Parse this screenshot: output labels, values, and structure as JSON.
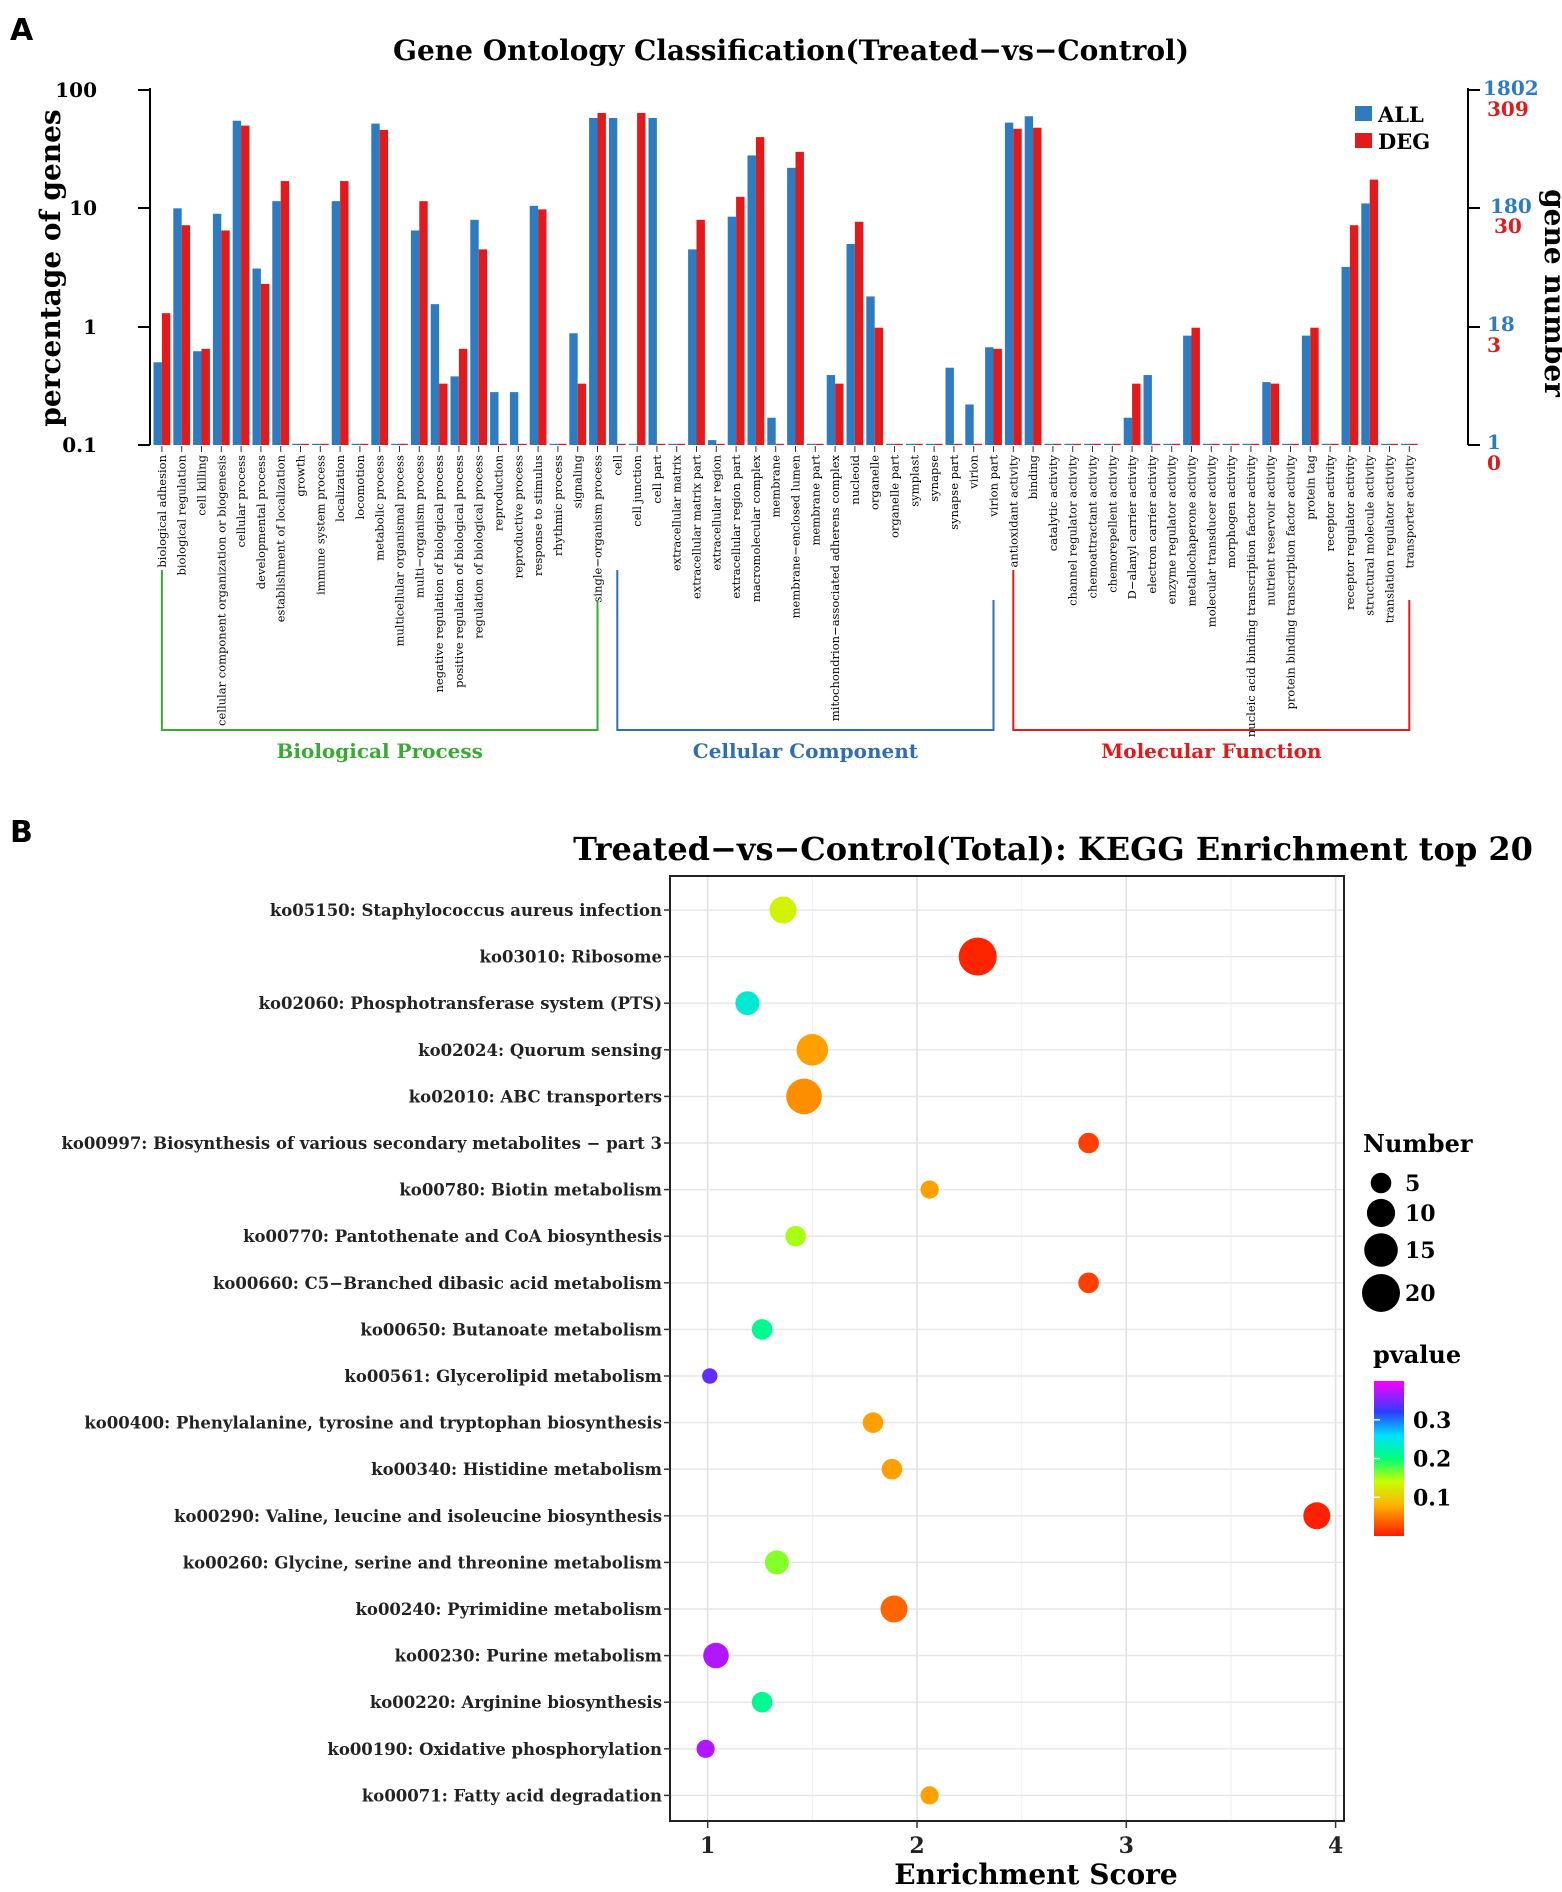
{
  "panels": {
    "a": "A",
    "b": "B"
  },
  "go_chart": {
    "ylabel_left": "percentage of genes",
    "ylabel_right": "gene number",
    "left_ticks": [
      "100",
      "10",
      "1",
      "0.1"
    ],
    "right_ticks_all": [
      "1802",
      "180",
      "18",
      "1"
    ],
    "right_ticks_deg": [
      "309",
      "30",
      "3",
      "0"
    ]
  },
  "kegg_chart": {
    "legend_number_title": "Number",
    "legend_pvalue_title": "pvalue"
  },
  "chart_data": [
    {
      "type": "bar",
      "title": "Gene Ontology Classification(Treated−vs−Control)",
      "xlabel": "",
      "ylabel": "percentage of genes",
      "ylabel_secondary": "gene number",
      "yscale": "log",
      "ylim": [
        0.1,
        100
      ],
      "colors": {
        "ALL": "#2f7bbf",
        "DEG": "#e21a1c"
      },
      "categories": [
        "biological adhesion",
        "biological regulation",
        "cell killing",
        "cellular component organization or biogenesis",
        "cellular process",
        "developmental process",
        "establishment of localization",
        "growth",
        "immune system process",
        "localization",
        "locomotion",
        "metabolic process",
        "multicellular organismal process",
        "multi−organism process",
        "negative regulation of biological process",
        "positive regulation of biological process",
        "regulation of biological process",
        "reproduction",
        "reproductive process",
        "response to stimulus",
        "rhythmic process",
        "signaling",
        "single−organism process",
        "cell",
        "cell junction",
        "cell part",
        "extracellular matrix",
        "extracellular matrix part",
        "extracellular region",
        "extracellular region part",
        "macromolecular complex",
        "membrane",
        "membrane−enclosed lumen",
        "membrane part",
        "mitochondrion−associated adherens complex",
        "nucleoid",
        "organelle",
        "organelle part",
        "symplast",
        "synapse",
        "synapse part",
        "virion",
        "virion part",
        "antioxidant activity",
        "binding",
        "catalytic activity",
        "channel regulator activity",
        "chemoattractant activity",
        "chemorepellent activity",
        "D−alanyl carrier activity",
        "electron carrier activity",
        "enzyme regulator activity",
        "metallochaperone activity",
        "molecular transducer activity",
        "morphogen activity",
        "nucleic acid binding transcription factor activity",
        "nutrient reservoir activity",
        "protein binding transcription factor activity",
        "protein tag",
        "receptor activity",
        "receptor regulator activity",
        "structural molecule activity",
        "translation regulator activity",
        "transporter activity"
      ],
      "series": [
        {
          "name": "ALL",
          "values": [
            0.5,
            10,
            0.62,
            9,
            55,
            3.1,
            11.5,
            0.1,
            0.1,
            11.5,
            0.1,
            52,
            0.1,
            6.5,
            1.55,
            0.38,
            8,
            0.28,
            0.28,
            10.5,
            0.1,
            0.88,
            58,
            58,
            0.1,
            58,
            0.1,
            4.5,
            0.11,
            8.5,
            28,
            0.17,
            22,
            0.1,
            0.39,
            5,
            1.8,
            0.1,
            0.1,
            0.1,
            0.45,
            0.22,
            0.67,
            53,
            60,
            0.1,
            0.1,
            0.1,
            0.1,
            0.17,
            0.39,
            0.1,
            0.84,
            0.1,
            0.1,
            0.1,
            0.34,
            0.1,
            0.84,
            0.1,
            3.2,
            11,
            0.1,
            0.1
          ]
        },
        {
          "name": "DEG",
          "values": [
            1.3,
            7.2,
            0.65,
            6.5,
            50,
            2.3,
            17,
            0.1,
            0.1,
            17,
            0.1,
            46,
            0.1,
            11.5,
            0.33,
            0.65,
            4.5,
            0.1,
            0.1,
            9.8,
            0.1,
            0.33,
            64,
            0.1,
            64,
            0.1,
            0.1,
            8,
            0.1,
            12.5,
            40,
            0.1,
            30,
            0.1,
            0.33,
            7.7,
            0.98,
            0.1,
            0.1,
            0.1,
            0.1,
            0.1,
            0.65,
            47,
            48,
            0.1,
            0.1,
            0.1,
            0.1,
            0.33,
            0.1,
            0.1,
            0.98,
            0.1,
            0.1,
            0.1,
            0.33,
            0.1,
            0.98,
            0.1,
            7.2,
            17.5,
            0.1,
            0.1
          ]
        }
      ],
      "groups": [
        {
          "name": "Biological Process",
          "start": 0,
          "end": 22,
          "color": "#3aaa35"
        },
        {
          "name": "Cellular Component",
          "start": 23,
          "end": 42,
          "color": "#2f6fb0"
        },
        {
          "name": "Molecular Function",
          "start": 43,
          "end": 63,
          "color": "#e21a1c"
        }
      ],
      "legend": [
        "ALL",
        "DEG"
      ],
      "legend_position": "top-right"
    },
    {
      "type": "scatter",
      "title": "Treated−vs−Control(Total): KEGG Enrichment top 20",
      "xlabel": "Enrichment Score",
      "ylabel": "",
      "xlim": [
        0.82,
        4.04
      ],
      "x_ticks": [
        1,
        2,
        3,
        4
      ],
      "grid": true,
      "categories": [
        "ko05150: Staphylococcus aureus infection",
        "ko03010: Ribosome",
        "ko02060: Phosphotransferase system (PTS)",
        "ko02024: Quorum sensing",
        "ko02010: ABC transporters",
        "ko00997: Biosynthesis of various secondary metabolites − part 3",
        "ko00780: Biotin metabolism",
        "ko00770: Pantothenate and CoA biosynthesis",
        "ko00660: C5−Branched dibasic acid metabolism",
        "ko00650: Butanoate metabolism",
        "ko00561: Glycerolipid metabolism",
        "ko00400: Phenylalanine, tyrosine and tryptophan biosynthesis",
        "ko00340: Histidine metabolism",
        "ko00290: Valine, leucine and isoleucine biosynthesis",
        "ko00260: Glycine, serine and threonine metabolism",
        "ko00240: Pyrimidine metabolism",
        "ko00230: Purine metabolism",
        "ko00220: Arginine biosynthesis",
        "ko00190: Oxidative phosphorylation",
        "ko00071: Fatty acid degradation"
      ],
      "enrichment_score": [
        1.36,
        2.29,
        1.19,
        1.5,
        1.46,
        2.82,
        2.06,
        1.42,
        2.82,
        1.26,
        1.01,
        1.79,
        1.88,
        3.91,
        1.33,
        1.89,
        1.04,
        1.26,
        0.99,
        2.06
      ],
      "number": [
        9,
        20,
        7,
        13,
        17,
        5,
        4,
        5,
        5,
        5,
        3,
        5,
        5,
        9,
        7,
        9,
        8,
        5,
        4,
        4
      ],
      "pvalue": [
        0.13,
        0.005,
        0.24,
        0.07,
        0.06,
        0.02,
        0.07,
        0.15,
        0.02,
        0.21,
        0.34,
        0.07,
        0.07,
        0.003,
        0.16,
        0.04,
        0.37,
        0.21,
        0.37,
        0.07
      ],
      "size_legend": [
        "5",
        "10",
        "15",
        "20"
      ],
      "color_legend": [
        "0.3",
        "0.2",
        "0.1"
      ],
      "pvalue_range": [
        0,
        0.4
      ],
      "legend_position": "right"
    }
  ]
}
